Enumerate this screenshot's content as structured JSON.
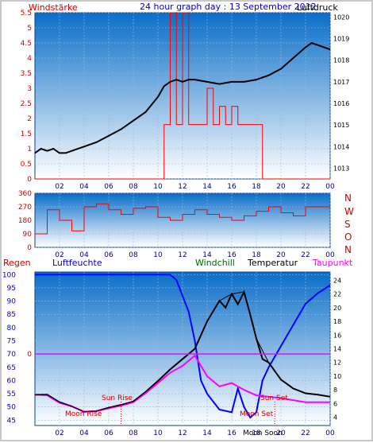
{
  "header": {
    "left_label": "Windstärke",
    "title": "24 hour graph day : 13 September 2012",
    "right_label": "Luftdruck"
  },
  "colors": {
    "wind": "#ff0000",
    "pressure": "#000000",
    "humidity": "#0000ff",
    "windchill": "#000000",
    "temperature": "#000000",
    "dewpoint": "#ff00ff",
    "sky_top": "#0a6ec8",
    "sky_bottom": "#ffffff",
    "label_red": "#cc0000",
    "label_blue": "#0000cc",
    "label_green": "#006600",
    "label_magenta": "#ff00ff"
  },
  "bottom_legend": {
    "regen": "Regen",
    "luftfeuchte": "Luftfeuchte",
    "windchill": "Windchill",
    "temperatur": "Temperatur",
    "taupunkt": "Taupunkt"
  },
  "compass": {
    "n1": "N",
    "w": "W",
    "s": "S",
    "o": "O",
    "n2": "N"
  },
  "annotations": {
    "sun_rise": "Sun Rise",
    "sun_set": "Sun Set",
    "moon_rise": "Moon Rise",
    "moon_set": "Moon Set",
    "moon_soon": "Moon Soon"
  },
  "chart_data": [
    {
      "type": "line",
      "title": "24 hour graph day : 13 September 2012",
      "x_ticks": [
        "02",
        "04",
        "06",
        "08",
        "10",
        "12",
        "14",
        "16",
        "18",
        "20",
        "22",
        "00"
      ],
      "xlim_hours": [
        0,
        24
      ],
      "y_left": {
        "label": "Windstärke",
        "ylim": [
          0,
          5.5
        ],
        "ticks": [
          "0",
          "0.5",
          "1",
          "1.5",
          "2",
          "2.5",
          "3",
          "3.5",
          "4",
          "4.5",
          "5",
          "5.5"
        ]
      },
      "y_right": {
        "label": "Luftdruck",
        "ylim": [
          1012.5,
          1020.2
        ],
        "ticks": [
          "1013",
          "1014",
          "1015",
          "1016",
          "1017",
          "1018",
          "1019",
          "1020"
        ]
      },
      "series": [
        {
          "name": "Luftdruck",
          "axis": "right",
          "x": [
            0,
            0.5,
            1,
            1.5,
            2,
            2.5,
            3,
            4,
            5,
            6,
            7,
            8,
            9,
            10,
            10.5,
            11,
            11.5,
            12,
            12.5,
            13,
            14,
            15,
            16,
            17,
            18,
            19,
            20,
            21,
            22,
            22.5,
            23,
            23.5,
            24
          ],
          "y": [
            1013.7,
            1013.9,
            1013.8,
            1013.9,
            1013.7,
            1013.7,
            1013.8,
            1014.0,
            1014.2,
            1014.5,
            1014.8,
            1015.2,
            1015.6,
            1016.3,
            1016.8,
            1017.0,
            1017.1,
            1017.0,
            1017.1,
            1017.1,
            1017.0,
            1016.9,
            1017.0,
            1017.0,
            1017.1,
            1017.3,
            1017.6,
            1018.1,
            1018.6,
            1018.8,
            1018.7,
            1018.6,
            1018.5
          ]
        },
        {
          "name": "Windstärke",
          "axis": "left",
          "x": [
            0,
            1,
            2,
            3,
            4,
            5,
            6,
            7,
            8,
            9,
            10,
            10.5,
            11,
            11.5,
            12,
            12.5,
            13,
            13.5,
            14,
            14.5,
            15,
            15.5,
            16,
            16.5,
            17,
            17.5,
            18,
            18.5,
            19,
            20,
            21,
            22,
            23,
            24
          ],
          "y": [
            0,
            0,
            0,
            0,
            0,
            0,
            0,
            0,
            0,
            0,
            0,
            1.8,
            5.5,
            1.8,
            5.5,
            1.8,
            1.8,
            1.8,
            3.0,
            1.8,
            2.4,
            1.8,
            2.4,
            1.8,
            1.8,
            1.8,
            1.8,
            0,
            0,
            0,
            0,
            0,
            0,
            0
          ]
        }
      ]
    },
    {
      "type": "line",
      "x_ticks": [
        "02",
        "04",
        "06",
        "08",
        "10",
        "12",
        "14",
        "16",
        "18",
        "20",
        "22",
        "00"
      ],
      "xlim_hours": [
        0,
        24
      ],
      "y_left": {
        "ylim": [
          0,
          360
        ],
        "ticks": [
          "0",
          "90",
          "180",
          "270",
          "360"
        ]
      },
      "y_right_labels": [
        "N",
        "W",
        "S",
        "O",
        "N"
      ],
      "series": [
        {
          "name": "Windrichtung",
          "x": [
            0,
            1,
            2,
            3,
            4,
            5,
            6,
            7,
            8,
            9,
            10,
            11,
            12,
            13,
            14,
            15,
            16,
            17,
            18,
            19,
            20,
            21,
            22,
            23,
            24
          ],
          "y": [
            90,
            250,
            180,
            110,
            270,
            290,
            250,
            220,
            260,
            270,
            200,
            180,
            220,
            250,
            220,
            200,
            180,
            210,
            240,
            270,
            230,
            210,
            270,
            270,
            270
          ]
        }
      ]
    },
    {
      "type": "line",
      "x_ticks": [
        "02",
        "04",
        "06",
        "08",
        "10",
        "12",
        "14",
        "16",
        "18",
        "20",
        "22",
        "00"
      ],
      "xlim_hours": [
        0,
        24
      ],
      "y_left": {
        "label": "Luftfeuchte",
        "ylim": [
          43,
          101
        ],
        "ticks": [
          "45",
          "50",
          "55",
          "60",
          "65",
          "70",
          "75",
          "80",
          "85",
          "90",
          "95",
          "100"
        ]
      },
      "y_right": {
        "label": "Temperatur",
        "ylim": [
          2.8,
          25.2
        ],
        "ticks": [
          "4",
          "6",
          "8",
          "10",
          "12",
          "14",
          "16",
          "18",
          "20",
          "22",
          "24"
        ]
      },
      "y_rain": {
        "label": "Regen",
        "tick": "0"
      },
      "series": [
        {
          "name": "Luftfeuchte",
          "axis": "left",
          "x": [
            0,
            1,
            2,
            3,
            4,
            5,
            6,
            7,
            8,
            9,
            10,
            11,
            11.5,
            12,
            12.5,
            13,
            13.5,
            14,
            15,
            16,
            16.5,
            17,
            17.5,
            18,
            18.5,
            19,
            20,
            21,
            22,
            23,
            24
          ],
          "y": [
            100,
            100,
            100,
            100,
            100,
            100,
            100,
            100,
            100,
            100,
            100,
            100,
            98,
            92,
            86,
            75,
            60,
            55,
            49,
            48,
            57,
            50,
            46,
            48,
            60,
            65,
            73,
            81,
            89,
            93,
            96
          ]
        },
        {
          "name": "Temperatur",
          "axis": "right",
          "x": [
            0,
            1,
            2,
            3,
            4,
            5,
            6,
            7,
            8,
            9,
            10,
            11,
            12,
            13,
            14,
            15,
            15.5,
            16,
            16.5,
            17,
            17.5,
            18,
            18.5,
            19,
            20,
            21,
            22,
            23,
            24
          ],
          "y": [
            7.3,
            7.3,
            6.2,
            5.6,
            4.8,
            4.9,
            5.4,
            5.8,
            6.3,
            7.7,
            9.3,
            11.0,
            12.5,
            14.0,
            18.0,
            21.0,
            20.0,
            22.0,
            20.5,
            22.3,
            19.0,
            15.5,
            12.5,
            12.0,
            9.5,
            8.2,
            7.5,
            7.3,
            7.0
          ]
        },
        {
          "name": "Taupunkt",
          "axis": "right",
          "x": [
            0,
            1,
            2,
            3,
            4,
            5,
            6,
            7,
            8,
            9,
            10,
            11,
            12,
            13,
            13.5,
            14,
            15,
            16,
            17,
            18,
            19,
            20,
            21,
            22,
            23,
            24
          ],
          "y": [
            7.3,
            7.2,
            6.1,
            5.6,
            4.8,
            4.9,
            5.3,
            5.7,
            6.2,
            7.5,
            9.0,
            10.5,
            11.5,
            13.0,
            11.5,
            10.0,
            8.5,
            9.0,
            8.0,
            7.2,
            7.0,
            6.8,
            6.5,
            6.2,
            6.2,
            6.2
          ]
        },
        {
          "name": "Windchill",
          "axis": "right",
          "x": [
            0,
            1,
            2,
            3,
            4,
            5,
            6,
            7,
            8,
            9,
            10,
            11,
            12,
            13,
            14,
            15,
            16,
            17,
            18,
            19,
            20,
            21,
            22,
            23,
            24
          ],
          "y": [
            7.3,
            7.3,
            6.2,
            5.6,
            4.8,
            4.9,
            5.4,
            5.8,
            6.3,
            7.7,
            9.3,
            11.0,
            12.5,
            14.0,
            18.0,
            21.0,
            22.0,
            22.3,
            15.5,
            12.0,
            9.5,
            8.2,
            7.5,
            7.3,
            7.0
          ]
        },
        {
          "name": "Regen",
          "axis": "rain",
          "x": [
            0,
            24
          ],
          "y": [
            0,
            0
          ]
        }
      ],
      "markers": [
        {
          "label": "Sun Rise",
          "hour": 7.0
        },
        {
          "label": "Sun Set",
          "hour": 19.5
        },
        {
          "label": "Moon Rise",
          "hour": 3.8
        },
        {
          "label": "Moon Set",
          "hour": 16.8
        }
      ]
    }
  ]
}
